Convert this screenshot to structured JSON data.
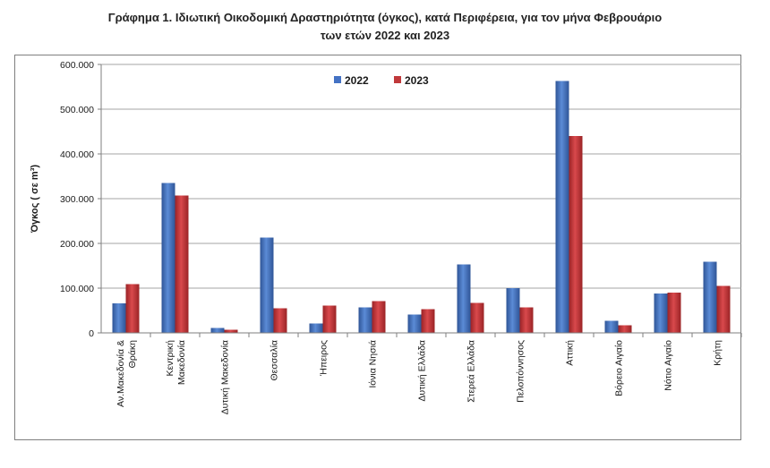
{
  "chart_data": {
    "type": "bar",
    "title_line1": "Γράφημα 1.  Ιδιωτική Οικοδομική Δραστηριότητα (όγκος), κατά Περιφέρεια, για τον μήνα Φεβρουάριο",
    "title_line2": "των ετών 2022 και 2023",
    "ylabel": "Όγκος ( σε m³)",
    "xlabel": "",
    "ylim": [
      0,
      600000
    ],
    "y_ticks": [
      "0",
      "100.000",
      "200.000",
      "300.000",
      "400.000",
      "500.000",
      "600.000"
    ],
    "y_tick_values": [
      0,
      100000,
      200000,
      300000,
      400000,
      500000,
      600000
    ],
    "grid": true,
    "legend_position": "top-center",
    "categories": [
      [
        "Αν.Μακεδονία &",
        "Θράκη"
      ],
      [
        "Κεντρική",
        "Μακεδονία"
      ],
      [
        "Δυτική Μακεδονία"
      ],
      [
        "Θεσσαλία"
      ],
      [
        "Ήπειρος"
      ],
      [
        "Ιόνια Νησιά"
      ],
      [
        "Δυτική Ελλάδα"
      ],
      [
        "Στερεά Ελλάδα"
      ],
      [
        "Πελοπόννησος"
      ],
      [
        "Αττική"
      ],
      [
        "Βόρειο Αιγαίο"
      ],
      [
        "Νότιο Αιγαίο"
      ],
      [
        "Κρήτη"
      ]
    ],
    "series": [
      {
        "name": "2022",
        "color": "#4472C4",
        "values": [
          66000,
          335000,
          11000,
          213000,
          21000,
          57000,
          41000,
          153000,
          100000,
          563000,
          27000,
          88000,
          159000
        ]
      },
      {
        "name": "2023",
        "color": "#C0393B",
        "values": [
          109000,
          307000,
          7000,
          55000,
          61000,
          71000,
          53000,
          67000,
          57000,
          440000,
          17000,
          90000,
          105000
        ]
      }
    ]
  }
}
